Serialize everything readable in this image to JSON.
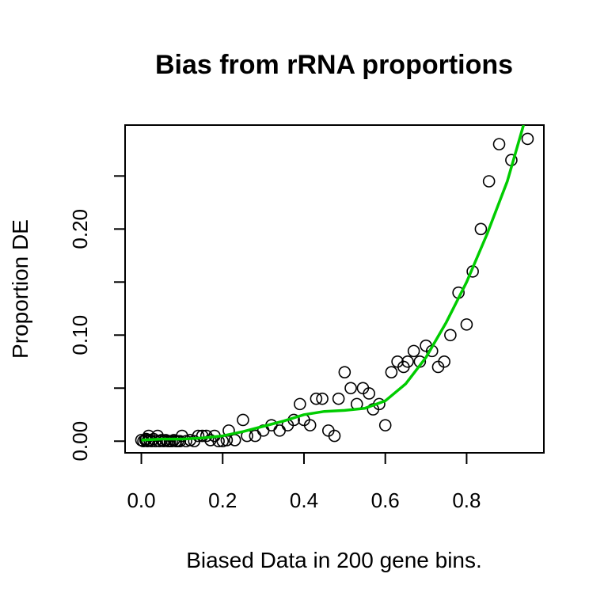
{
  "chart_data": {
    "type": "scatter",
    "title": "Bias from rRNA proportions",
    "xlabel": "Biased Data in 200 gene bins.",
    "ylabel": "Proportion DE",
    "xlim": [
      -0.04,
      0.99
    ],
    "ylim": [
      -0.011,
      0.298
    ],
    "x_ticks": [
      0.0,
      0.2,
      0.4,
      0.6,
      0.8
    ],
    "x_tick_labels": [
      "0.0",
      "0.2",
      "0.4",
      "0.6",
      "0.8"
    ],
    "y_ticks": [
      0.0,
      0.05,
      0.1,
      0.15,
      0.2,
      0.25
    ],
    "y_tick_labels": [
      "0.00",
      "",
      "0.10",
      "",
      "0.20",
      ""
    ],
    "grid": false,
    "legend": "none",
    "points": {
      "marker": "open-circle",
      "color": "#000000",
      "x": [
        0.0,
        0.005,
        0.01,
        0.012,
        0.015,
        0.018,
        0.02,
        0.025,
        0.03,
        0.035,
        0.04,
        0.045,
        0.05,
        0.055,
        0.06,
        0.065,
        0.07,
        0.075,
        0.08,
        0.085,
        0.09,
        0.095,
        0.1,
        0.11,
        0.12,
        0.13,
        0.14,
        0.15,
        0.16,
        0.17,
        0.18,
        0.19,
        0.2,
        0.21,
        0.215,
        0.23,
        0.25,
        0.26,
        0.28,
        0.3,
        0.32,
        0.34,
        0.36,
        0.375,
        0.39,
        0.4,
        0.415,
        0.43,
        0.445,
        0.46,
        0.475,
        0.485,
        0.5,
        0.515,
        0.53,
        0.545,
        0.56,
        0.57,
        0.585,
        0.6,
        0.615,
        0.63,
        0.645,
        0.655,
        0.67,
        0.685,
        0.7,
        0.715,
        0.73,
        0.745,
        0.76,
        0.78,
        0.8,
        0.815,
        0.835,
        0.855,
        0.88,
        0.91,
        0.95
      ],
      "y": [
        0.001,
        0.0,
        0.001,
        0.002,
        0.0,
        0.005,
        0.001,
        0.0,
        0.002,
        0.0,
        0.005,
        0.0,
        0.001,
        0.0,
        0.001,
        0.0,
        0.0,
        0.0,
        0.001,
        0.0,
        0.0,
        0.0,
        0.005,
        0.0,
        0.001,
        0.0,
        0.005,
        0.005,
        0.005,
        0.001,
        0.005,
        0.0,
        0.0,
        0.001,
        0.01,
        0.001,
        0.02,
        0.005,
        0.005,
        0.01,
        0.015,
        0.01,
        0.015,
        0.02,
        0.035,
        0.02,
        0.015,
        0.04,
        0.04,
        0.01,
        0.005,
        0.04,
        0.065,
        0.05,
        0.035,
        0.05,
        0.045,
        0.03,
        0.035,
        0.015,
        0.065,
        0.075,
        0.07,
        0.075,
        0.085,
        0.075,
        0.09,
        0.085,
        0.07,
        0.075,
        0.1,
        0.14,
        0.11,
        0.16,
        0.2,
        0.245,
        0.28,
        0.265,
        0.285
      ]
    },
    "series": [
      {
        "type": "line",
        "color": "#00cc00",
        "x": [
          0.0,
          0.05,
          0.1,
          0.15,
          0.2,
          0.25,
          0.3,
          0.35,
          0.4,
          0.45,
          0.5,
          0.55,
          0.6,
          0.65,
          0.7,
          0.75,
          0.8,
          0.85,
          0.9,
          0.94
        ],
        "y": [
          0.001,
          0.002,
          0.002,
          0.003,
          0.005,
          0.009,
          0.014,
          0.019,
          0.025,
          0.028,
          0.029,
          0.031,
          0.038,
          0.054,
          0.079,
          0.112,
          0.15,
          0.195,
          0.245,
          0.298
        ]
      }
    ]
  }
}
